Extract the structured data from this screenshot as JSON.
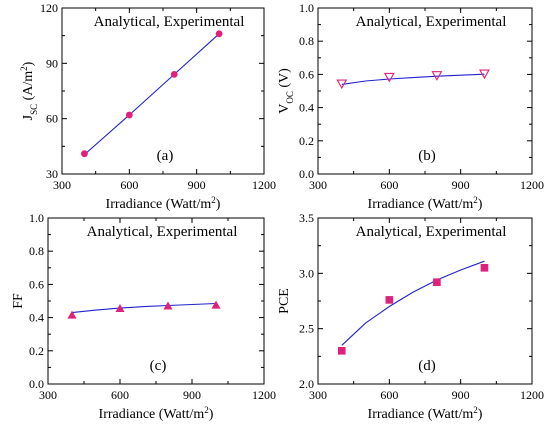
{
  "chart_data": [
    {
      "type": "line",
      "panel_label": "(a)",
      "legend": "Analytical, Experimental",
      "xlabel": "Irradiance (Watt/m²)",
      "ylabel": "J_SC (A/m²)",
      "ylabel_parts": {
        "main": "J",
        "sub": "SC",
        "rest": " (A/m",
        "sup": "2",
        "end": ")"
      },
      "xlim": [
        300,
        1200
      ],
      "ylim": [
        30,
        120
      ],
      "xticks": [
        300,
        600,
        900,
        1200
      ],
      "yticks": [
        30,
        60,
        90,
        120
      ],
      "series": [
        {
          "role": "analytical",
          "style": "line",
          "color": "#2222cc",
          "x": [
            400,
            600,
            800,
            1000
          ],
          "y": [
            40.5,
            62,
            84,
            106
          ]
        },
        {
          "role": "experimental",
          "style": "markers",
          "marker": "circle",
          "color": "#e0207a",
          "x": [
            400,
            600,
            800,
            1000
          ],
          "y": [
            41,
            62,
            84,
            106
          ]
        }
      ]
    },
    {
      "type": "line",
      "panel_label": "(b)",
      "legend": "Analytical, Experimental",
      "xlabel": "Irradiance (Watt/m²)",
      "ylabel": "V_OC (V)",
      "ylabel_parts": {
        "main": "V",
        "sub": "OC",
        "rest": " (V)",
        "sup": "",
        "end": ""
      },
      "xlim": [
        300,
        1200
      ],
      "ylim": [
        0.0,
        1.0
      ],
      "xticks": [
        300,
        600,
        900,
        1200
      ],
      "yticks": [
        0.0,
        0.2,
        0.4,
        0.6,
        0.8,
        1.0
      ],
      "series": [
        {
          "role": "analytical",
          "style": "line",
          "color": "#2222cc",
          "x": [
            400,
            500,
            600,
            700,
            800,
            900,
            1000
          ],
          "y": [
            0.54,
            0.56,
            0.572,
            0.581,
            0.589,
            0.595,
            0.601
          ]
        },
        {
          "role": "experimental",
          "style": "markers",
          "marker": "triangle-down-open",
          "color": "#e0207a",
          "x": [
            400,
            600,
            800,
            1000
          ],
          "y": [
            0.545,
            0.585,
            0.595,
            0.605
          ]
        }
      ]
    },
    {
      "type": "line",
      "panel_label": "(c)",
      "legend": "Analytical, Experimental",
      "xlabel": "Irradiance (Watt/m²)",
      "ylabel": "FF",
      "ylabel_parts": {
        "main": "FF",
        "sub": "",
        "rest": "",
        "sup": "",
        "end": ""
      },
      "xlim": [
        300,
        1200
      ],
      "ylim": [
        0.0,
        1.0
      ],
      "xticks": [
        300,
        600,
        900,
        1200
      ],
      "yticks": [
        0.0,
        0.2,
        0.4,
        0.6,
        0.8,
        1.0
      ],
      "series": [
        {
          "role": "analytical",
          "style": "line",
          "color": "#2222cc",
          "x": [
            400,
            500,
            600,
            700,
            800,
            900,
            1000
          ],
          "y": [
            0.43,
            0.445,
            0.457,
            0.466,
            0.473,
            0.479,
            0.485
          ]
        },
        {
          "role": "experimental",
          "style": "markers",
          "marker": "triangle-up",
          "color": "#e0207a",
          "x": [
            400,
            600,
            800,
            1000
          ],
          "y": [
            0.415,
            0.455,
            0.47,
            0.475
          ]
        }
      ]
    },
    {
      "type": "line",
      "panel_label": "(d)",
      "legend": "Analytical, Experimental",
      "xlabel": "Irradiance (Watt/m²)",
      "ylabel": "PCE",
      "ylabel_parts": {
        "main": "PCE",
        "sub": "",
        "rest": "",
        "sup": "",
        "end": ""
      },
      "xlim": [
        300,
        1200
      ],
      "ylim": [
        2.0,
        3.5
      ],
      "xticks": [
        300,
        600,
        900,
        1200
      ],
      "yticks": [
        2.0,
        2.5,
        3.0,
        3.5
      ],
      "series": [
        {
          "role": "analytical",
          "style": "line",
          "color": "#2222cc",
          "x": [
            400,
            500,
            600,
            700,
            800,
            900,
            1000
          ],
          "y": [
            2.35,
            2.55,
            2.7,
            2.83,
            2.94,
            3.03,
            3.11
          ]
        },
        {
          "role": "experimental",
          "style": "markers",
          "marker": "square",
          "color": "#e0207a",
          "x": [
            400,
            600,
            800,
            1000
          ],
          "y": [
            2.3,
            2.76,
            2.92,
            3.05
          ]
        }
      ]
    }
  ]
}
